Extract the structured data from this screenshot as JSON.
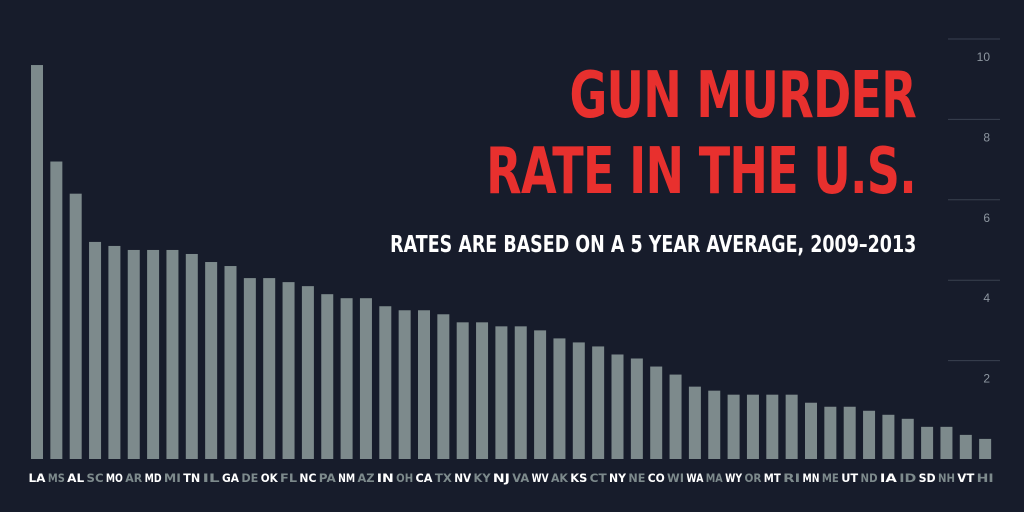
{
  "chart_data": {
    "type": "bar",
    "title_lines": [
      "GUN MURDER",
      "RATE IN THE U.S."
    ],
    "subtitle": "RATES ARE BASED ON A 5 YEAR AVERAGE, 2009–2013",
    "categories": [
      "LA",
      "MS",
      "AL",
      "SC",
      "MO",
      "AR",
      "MD",
      "MI",
      "TN",
      "IL",
      "GA",
      "DE",
      "OK",
      "FL",
      "NC",
      "PA",
      "NM",
      "AZ",
      "IN",
      "OH",
      "CA",
      "TX",
      "NV",
      "KY",
      "NJ",
      "VA",
      "WV",
      "AK",
      "KS",
      "CT",
      "NY",
      "NE",
      "CO",
      "WI",
      "WA",
      "MA",
      "WY",
      "OR",
      "MT",
      "RI",
      "MN",
      "ME",
      "UT",
      "ND",
      "IA",
      "ID",
      "SD",
      "NH",
      "VT",
      "HI"
    ],
    "values": [
      9.8,
      7.4,
      6.6,
      5.4,
      5.3,
      5.2,
      5.2,
      5.2,
      5.1,
      4.9,
      4.8,
      4.5,
      4.5,
      4.4,
      4.3,
      4.1,
      4.0,
      4.0,
      3.8,
      3.7,
      3.7,
      3.6,
      3.4,
      3.4,
      3.3,
      3.3,
      3.2,
      3.0,
      2.9,
      2.8,
      2.6,
      2.5,
      2.3,
      2.1,
      1.8,
      1.7,
      1.6,
      1.6,
      1.6,
      1.6,
      1.4,
      1.3,
      1.3,
      1.2,
      1.1,
      1.0,
      0.8,
      0.8,
      0.6,
      0.5
    ],
    "y_ticks": [
      "2",
      "4",
      "6",
      "8",
      "10"
    ],
    "ylim": [
      0,
      10
    ],
    "grid": true,
    "colors": {
      "background": "#171c2b",
      "bar": "#7d8a8c",
      "title": "#e8302e",
      "subtitle": "#ffffff",
      "label_light": "#ffffff",
      "label_dim": "#7d8a8c",
      "grid": "#3a4150"
    }
  }
}
